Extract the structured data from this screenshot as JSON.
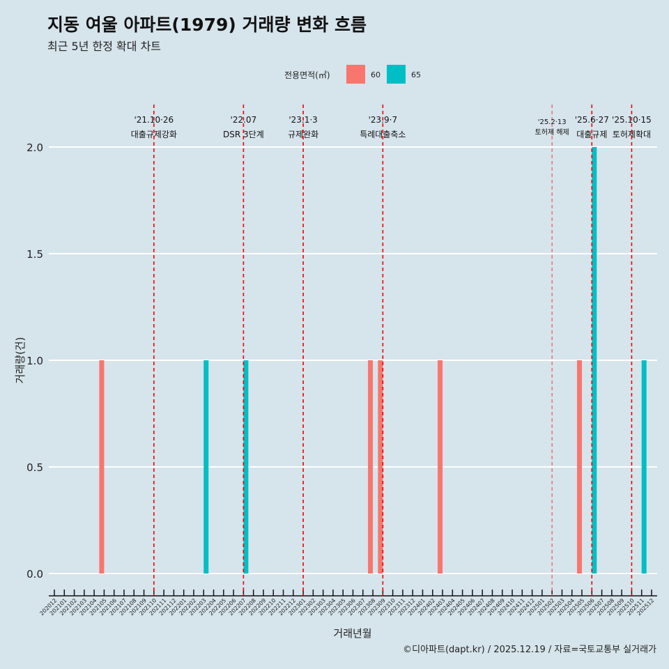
{
  "title": "지동 여울 아파트(1979) 거래량 변화 흐름",
  "subtitle": "최근 5년 한정 확대 차트",
  "caption": "©디아파트(dapt.kr) / 2025.12.19 / 자료=국토교통부 실거래가",
  "chart_data": {
    "type": "bar",
    "xlabel": "거래년월",
    "ylabel": "거래량(건)",
    "ylim": [
      0,
      2
    ],
    "yticks": [
      "0.0",
      "0.5",
      "1.0",
      "1.5",
      "2.0"
    ],
    "legend": {
      "title": "전용면적(㎡)",
      "position": "top",
      "entries": [
        {
          "name": "60",
          "color": "#f8766d"
        },
        {
          "name": "65",
          "color": "#00bfc4"
        }
      ]
    },
    "categories": [
      "202012",
      "202101",
      "202102",
      "202103",
      "202104",
      "202105",
      "202106",
      "202107",
      "202108",
      "202109",
      "202110",
      "202111",
      "202112",
      "202201",
      "202202",
      "202203",
      "202204",
      "202205",
      "202206",
      "202207",
      "202208",
      "202209",
      "202210",
      "202211",
      "202212",
      "202301",
      "202302",
      "202303",
      "202304",
      "202305",
      "202306",
      "202307",
      "202308",
      "202309",
      "202310",
      "202311",
      "202312",
      "202401",
      "202402",
      "202403",
      "202404",
      "202405",
      "202406",
      "202407",
      "202408",
      "202409",
      "202410",
      "202411",
      "202412",
      "202501",
      "202502",
      "202503",
      "202504",
      "202505",
      "202506",
      "202507",
      "202508",
      "202509",
      "202510",
      "202511",
      "202512"
    ],
    "series": [
      {
        "name": "60",
        "points": [
          {
            "x": "202105",
            "y": 1
          },
          {
            "x": "202308",
            "y": 1
          },
          {
            "x": "202309",
            "y": 1
          },
          {
            "x": "202403",
            "y": 1
          },
          {
            "x": "202505",
            "y": 1
          }
        ]
      },
      {
        "name": "65",
        "points": [
          {
            "x": "202203",
            "y": 1
          },
          {
            "x": "202207",
            "y": 1
          },
          {
            "x": "202506",
            "y": 2
          },
          {
            "x": "202511",
            "y": 1
          }
        ]
      }
    ],
    "events": [
      {
        "x": "202110",
        "date": "'21.10·26",
        "label": "대출규제강화"
      },
      {
        "x": "202207",
        "date": "'22.07",
        "label": "DSR 3단계"
      },
      {
        "x": "202301",
        "date": "'23.1·3",
        "label": "규제완화"
      },
      {
        "x": "202309",
        "date": "'23.9·7",
        "label": "특례대출축소"
      },
      {
        "x": "202502",
        "date": "'25.2·13",
        "label": "토허제 해제",
        "small": true
      },
      {
        "x": "202506",
        "date": "'25.6·27",
        "label": "대출규제"
      },
      {
        "x": "202510",
        "date": "'25.10·15",
        "label": "토허제확대"
      }
    ]
  }
}
